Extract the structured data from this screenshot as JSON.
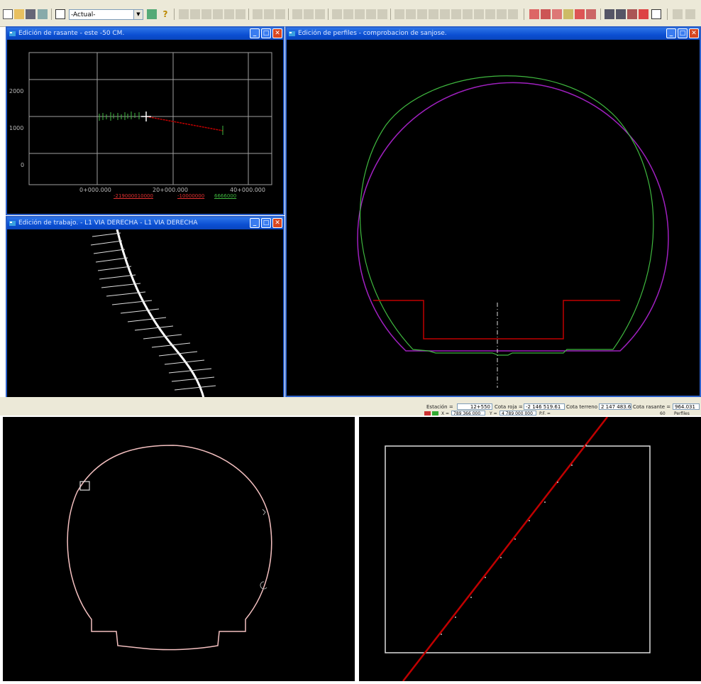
{
  "toolbar": {
    "layer_combo_value": "-Actual-"
  },
  "windows": {
    "rasante": {
      "title": "Edición de rasante - este -50 CM.",
      "y_ticks": [
        "2000",
        "1000",
        "0"
      ],
      "x_ticks": [
        "0+000.000",
        "20+000.000",
        "40+000.000"
      ],
      "legend_red": "-219000010000",
      "legend_red2": "-10000000",
      "legend_green": "6666000"
    },
    "trabajo": {
      "title": "Edición de trabajo. - L1 VIA DERECHA - L1 VIA DERECHA"
    },
    "perfiles": {
      "title": "Edición de perfiles - comprobacion de sanjose."
    }
  },
  "status": {
    "estacion_label": "Estación =",
    "estacion_value": "12+550",
    "cota_roja_label": "Cota roja =",
    "cota_roja_value": "-2 146 519.61",
    "cota_terreno_label": "Cota terreno =",
    "cota_terreno_value": "2 147 483.64",
    "cota_rasante_label": "Cota rasante =",
    "cota_rasante_value": "964.031",
    "x_label": "X =",
    "x_value": "789 366 000",
    "y_label": "Y =",
    "y_value": "4 789 000 000",
    "extra_label": "P.F. =",
    "right_value": "60",
    "right_label": "Perfiles"
  },
  "colors": {
    "window_title": "#0b4fd2",
    "profile_purple": "#a020c0",
    "profile_green": "#3fb83f",
    "profile_red": "#c00000",
    "grid_gray": "#a0a0a0"
  }
}
